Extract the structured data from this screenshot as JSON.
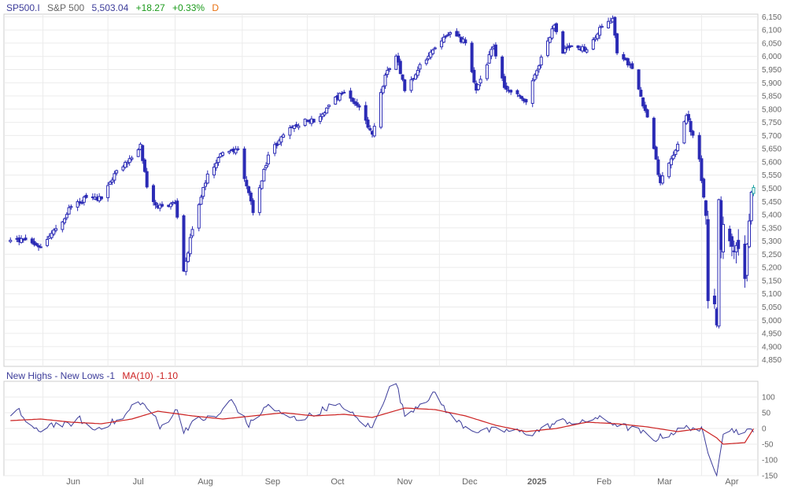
{
  "header": {
    "symbol": "SP500.I",
    "name": "S&P 500",
    "last": "5,503.04",
    "change": "+18.27",
    "change_pct": "+0.33%",
    "period": "D"
  },
  "indicator": {
    "label": "New Highs - New Lows -1",
    "ma_label": "MA(10)",
    "ma_value": "-1.10"
  },
  "colors": {
    "candle": "#2b2bb5",
    "last_candle": "#1aa3a3",
    "indicator_line": "#3c3c9a",
    "ma_line": "#cc2222",
    "grid": "#ebebeb",
    "axis_text": "#666666"
  },
  "chart_data": [
    {
      "type": "candlestick",
      "title": "SP500.I",
      "ylim": [
        4825,
        6160
      ],
      "y_ticks": [
        "4,850",
        "4,900",
        "4,950",
        "5,000",
        "5,050",
        "5,100",
        "5,150",
        "5,200",
        "5,250",
        "5,300",
        "5,350",
        "5,400",
        "5,450",
        "5,500",
        "5,550",
        "5,600",
        "5,650",
        "5,700",
        "5,750",
        "5,800",
        "5,850",
        "5,900",
        "5,950",
        "6,000",
        "6,050",
        "6,100",
        "6,150"
      ],
      "x_ticks": [
        "Jun",
        "Jul",
        "Aug",
        "Sep",
        "Oct",
        "Nov",
        "Dec",
        "2025",
        "Feb",
        "Mar",
        "Apr"
      ],
      "grid": true,
      "anchors": [
        [
          "2024-05-17",
          5303
        ],
        [
          "2024-05-24",
          5305
        ],
        [
          "2024-05-31",
          5278
        ],
        [
          "2024-06-07",
          5347
        ],
        [
          "2024-06-14",
          5431
        ],
        [
          "2024-06-21",
          5465
        ],
        [
          "2024-06-28",
          5460
        ],
        [
          "2024-07-05",
          5567
        ],
        [
          "2024-07-12",
          5615
        ],
        [
          "2024-07-16",
          5667
        ],
        [
          "2024-07-19",
          5505
        ],
        [
          "2024-07-24",
          5427
        ],
        [
          "2024-08-01",
          5446
        ],
        [
          "2024-08-05",
          5186
        ],
        [
          "2024-08-09",
          5344
        ],
        [
          "2024-08-16",
          5554
        ],
        [
          "2024-08-23",
          5635
        ],
        [
          "2024-08-30",
          5648
        ],
        [
          "2024-09-06",
          5408
        ],
        [
          "2024-09-13",
          5626
        ],
        [
          "2024-09-20",
          5702
        ],
        [
          "2024-09-30",
          5762
        ],
        [
          "2024-10-04",
          5751
        ],
        [
          "2024-10-11",
          5815
        ],
        [
          "2024-10-18",
          5864
        ],
        [
          "2024-10-25",
          5808
        ],
        [
          "2024-10-31",
          5705
        ],
        [
          "2024-11-06",
          5929
        ],
        [
          "2024-11-11",
          6001
        ],
        [
          "2024-11-15",
          5870
        ],
        [
          "2024-11-22",
          5969
        ],
        [
          "2024-11-29",
          6032
        ],
        [
          "2024-12-06",
          6090
        ],
        [
          "2024-12-13",
          6051
        ],
        [
          "2024-12-18",
          5872
        ],
        [
          "2024-12-26",
          6037
        ],
        [
          "2024-12-31",
          5882
        ],
        [
          "2025-01-10",
          5827
        ],
        [
          "2025-01-17",
          5997
        ],
        [
          "2025-01-23",
          6118
        ],
        [
          "2025-01-27",
          6012
        ],
        [
          "2025-01-31",
          6040
        ],
        [
          "2025-02-07",
          6025
        ],
        [
          "2025-02-14",
          6114
        ],
        [
          "2025-02-19",
          6144
        ],
        [
          "2025-02-21",
          6013
        ],
        [
          "2025-02-28",
          5954
        ],
        [
          "2025-03-07",
          5770
        ],
        [
          "2025-03-13",
          5521
        ],
        [
          "2025-03-21",
          5667
        ],
        [
          "2025-03-25",
          5776
        ],
        [
          "2025-03-31",
          5611
        ],
        [
          "2025-04-03",
          5397
        ],
        [
          "2025-04-04",
          5074
        ],
        [
          "2025-04-07",
          5062
        ],
        [
          "2025-04-08",
          4982
        ],
        [
          "2025-04-09",
          5457
        ],
        [
          "2025-04-10",
          5268
        ],
        [
          "2025-04-11",
          5363
        ],
        [
          "2025-04-17",
          5283
        ],
        [
          "2025-04-21",
          5158
        ],
        [
          "2025-04-22",
          5288
        ],
        [
          "2025-04-23",
          5376
        ],
        [
          "2025-04-24",
          5485
        ],
        [
          "2025-04-25",
          5503.04
        ]
      ]
    },
    {
      "type": "line",
      "title": "New Highs - New Lows -1",
      "ylim": [
        -150,
        150
      ],
      "y_ticks": [
        "100",
        "50",
        "0",
        "-50",
        "-100",
        "-150"
      ],
      "series": [
        {
          "name": "New Highs - New Lows -1",
          "anchors": [
            [
              "2024-05-17",
              35
            ],
            [
              "2024-05-21",
              55
            ],
            [
              "2024-05-24",
              25
            ],
            [
              "2024-05-30",
              -15
            ],
            [
              "2024-06-04",
              15
            ],
            [
              "2024-06-12",
              10
            ],
            [
              "2024-06-18",
              30
            ],
            [
              "2024-06-24",
              -5
            ],
            [
              "2024-07-01",
              15
            ],
            [
              "2024-07-08",
              30
            ],
            [
              "2024-07-12",
              70
            ],
            [
              "2024-07-16",
              85
            ],
            [
              "2024-07-22",
              45
            ],
            [
              "2024-07-25",
              0
            ],
            [
              "2024-08-02",
              60
            ],
            [
              "2024-08-05",
              -5
            ],
            [
              "2024-08-12",
              30
            ],
            [
              "2024-08-20",
              35
            ],
            [
              "2024-08-27",
              90
            ],
            [
              "2024-09-04",
              10
            ],
            [
              "2024-09-13",
              75
            ],
            [
              "2024-09-20",
              40
            ],
            [
              "2024-09-27",
              30
            ],
            [
              "2024-10-04",
              45
            ],
            [
              "2024-10-11",
              70
            ],
            [
              "2024-10-18",
              70
            ],
            [
              "2024-10-24",
              30
            ],
            [
              "2024-10-31",
              0
            ],
            [
              "2024-11-07",
              120
            ],
            [
              "2024-11-11",
              145
            ],
            [
              "2024-11-15",
              40
            ],
            [
              "2024-11-22",
              80
            ],
            [
              "2024-11-29",
              110
            ],
            [
              "2024-12-06",
              40
            ],
            [
              "2024-12-12",
              10
            ],
            [
              "2024-12-19",
              -10
            ],
            [
              "2024-12-27",
              -5
            ],
            [
              "2025-01-06",
              -10
            ],
            [
              "2025-01-13",
              -15
            ],
            [
              "2025-01-21",
              10
            ],
            [
              "2025-01-28",
              25
            ],
            [
              "2025-02-04",
              15
            ],
            [
              "2025-02-11",
              35
            ],
            [
              "2025-02-18",
              20
            ],
            [
              "2025-02-25",
              5
            ],
            [
              "2025-03-04",
              -10
            ],
            [
              "2025-03-10",
              -35
            ],
            [
              "2025-03-18",
              -15
            ],
            [
              "2025-03-26",
              5
            ],
            [
              "2025-04-01",
              -5
            ],
            [
              "2025-04-04",
              -80
            ],
            [
              "2025-04-08",
              -140
            ],
            [
              "2025-04-09",
              -95
            ],
            [
              "2025-04-11",
              -10
            ],
            [
              "2025-04-16",
              -5
            ],
            [
              "2025-04-21",
              -15
            ],
            [
              "2025-04-25",
              -1
            ]
          ]
        },
        {
          "name": "MA(10)",
          "anchors": [
            [
              "2024-05-17",
              25
            ],
            [
              "2024-05-31",
              30
            ],
            [
              "2024-06-14",
              20
            ],
            [
              "2024-06-28",
              15
            ],
            [
              "2024-07-12",
              30
            ],
            [
              "2024-07-24",
              55
            ],
            [
              "2024-08-09",
              40
            ],
            [
              "2024-08-23",
              30
            ],
            [
              "2024-09-06",
              40
            ],
            [
              "2024-09-20",
              50
            ],
            [
              "2024-10-04",
              40
            ],
            [
              "2024-10-18",
              45
            ],
            [
              "2024-10-31",
              35
            ],
            [
              "2024-11-15",
              65
            ],
            [
              "2024-11-29",
              60
            ],
            [
              "2024-12-13",
              40
            ],
            [
              "2024-12-27",
              10
            ],
            [
              "2025-01-10",
              -10
            ],
            [
              "2025-01-24",
              0
            ],
            [
              "2025-02-07",
              20
            ],
            [
              "2025-02-21",
              15
            ],
            [
              "2025-03-07",
              5
            ],
            [
              "2025-03-21",
              -10
            ],
            [
              "2025-04-01",
              0
            ],
            [
              "2025-04-08",
              -30
            ],
            [
              "2025-04-11",
              -50
            ],
            [
              "2025-04-21",
              -45
            ],
            [
              "2025-04-25",
              -1.1
            ]
          ]
        }
      ]
    }
  ]
}
